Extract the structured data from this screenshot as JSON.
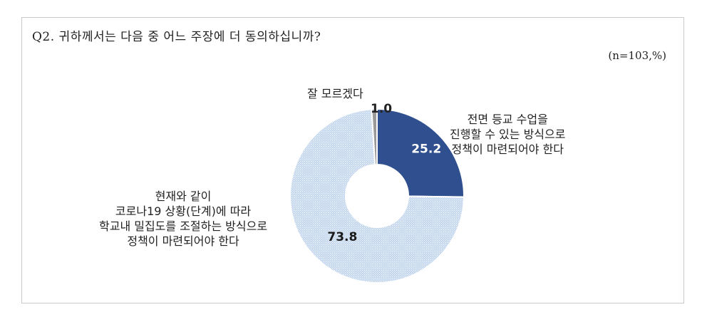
{
  "question": "Q2. 귀하께서는 다음 중 어느 주장에 더 동의하십니까?",
  "sample": "(n=103,%)",
  "colors": {
    "new_policy": "#2f4f8f",
    "current_policy": "#bcd0ea",
    "dont_know": "#9a9a9a"
  },
  "chart_data": {
    "type": "pie",
    "donut": true,
    "categories": [
      "전면 등교 수업을 진행할 수 있는 방식으로 정책이 마련되어야 한다",
      "현재와 같이 코로나19 상황(단계)에 따라 학교내 밀집도를 조절하는 방식으로 정책이 마련되어야 한다",
      "잘 모르겠다"
    ],
    "values": [
      25.2,
      73.8,
      1.0
    ],
    "value_labels": [
      "25.2",
      "73.8",
      "1.0"
    ],
    "label_lines": [
      [
        "전면 등교 수업을",
        "진행할 수 있는 방식으로",
        "정책이 마련되어야 한다"
      ],
      [
        "현재와 같이",
        "코로나19 상황(단계)에 따라",
        "학교내 밀집도를 조절하는 방식으로",
        "정책이 마련되어야 한다"
      ],
      [
        "잘 모르겠다"
      ]
    ]
  }
}
